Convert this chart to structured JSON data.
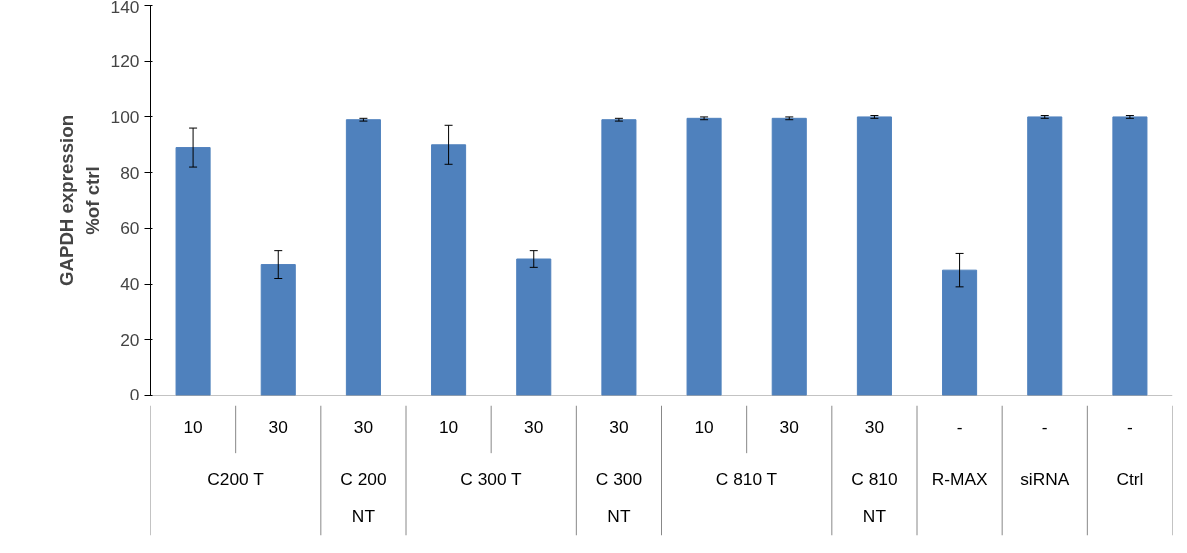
{
  "chart_data": {
    "type": "bar",
    "ylabel": "GAPDH expression\n%of ctrl",
    "categories": [
      "10",
      "30",
      "30",
      "10",
      "30",
      "30",
      "10",
      "30",
      "30",
      "-",
      "-",
      "-"
    ],
    "values": [
      89,
      47,
      99,
      90,
      49,
      99,
      99.5,
      99.5,
      100,
      45,
      100,
      100
    ],
    "errors": [
      7,
      5,
      0.5,
      7,
      3,
      0.5,
      0.5,
      0.5,
      0.5,
      6,
      0.5,
      0.5
    ],
    "color": "#4f81bd",
    "annotations": [
      "C200 T",
      "C 200 NT",
      "C 300 T",
      "C 300 NT",
      "C 810 T",
      "C 810 NT",
      "R-MAX",
      "siRNA",
      "Ctrl"
    ],
    "ylim": [
      0,
      140
    ],
    "yticks": [
      0,
      20,
      40,
      60,
      80,
      100,
      120,
      140
    ],
    "grid": false
  }
}
